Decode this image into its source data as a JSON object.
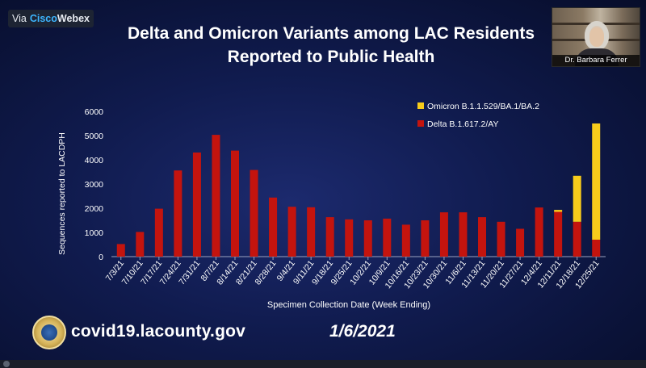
{
  "meeting": {
    "brand_prefix": "Via",
    "brand_cisco": "Cisco",
    "brand_webex": "Webex",
    "participant_name": "Dr. Barbara Ferrer"
  },
  "slide": {
    "title_line1": "Delta and Omicron Variants among LAC Residents",
    "title_line2": "Reported to Public Health",
    "footer_url": "covid19.lacounty.gov",
    "footer_date": "1/6/2021"
  },
  "colors": {
    "delta": "#c4140e",
    "omicron": "#f8cc1b",
    "background": "#101b4e"
  },
  "chart_data": {
    "type": "bar",
    "stacked": true,
    "xlabel": "Specimen Collection Date (Week Ending)",
    "ylabel": "Sequences reported to LACDPH",
    "ylim": [
      0,
      6000
    ],
    "yticks": [
      0,
      1000,
      2000,
      3000,
      4000,
      5000,
      6000
    ],
    "grid": false,
    "legend_position": "top-right",
    "categories": [
      "7/3/21",
      "7/10/21",
      "7/17/21",
      "7/24/21",
      "7/31/21",
      "8/7/21",
      "8/14/21",
      "8/21/21",
      "8/28/21",
      "9/4/21",
      "9/11/21",
      "9/18/21",
      "9/25/21",
      "10/2/21",
      "10/9/21",
      "10/16/21",
      "10/23/21",
      "10/30/21",
      "11/6/21",
      "11/13/21",
      "11/20/21",
      "11/27/21",
      "12/4/21",
      "12/11/21",
      "12/18/21",
      "12/25/21"
    ],
    "series": [
      {
        "name": "Omicron B.1.1.529/BA.1/BA.2",
        "values": [
          0,
          0,
          0,
          0,
          0,
          0,
          0,
          0,
          0,
          0,
          0,
          0,
          0,
          0,
          0,
          0,
          0,
          0,
          0,
          0,
          0,
          0,
          0,
          80,
          1900,
          4800
        ]
      },
      {
        "name": "Delta B.1.617.2/AY",
        "values": [
          520,
          1020,
          1980,
          3560,
          4300,
          5030,
          4380,
          3580,
          2440,
          2060,
          2040,
          1630,
          1540,
          1500,
          1570,
          1320,
          1500,
          1830,
          1830,
          1630,
          1440,
          1150,
          2030,
          1850,
          1440,
          700
        ]
      }
    ]
  }
}
